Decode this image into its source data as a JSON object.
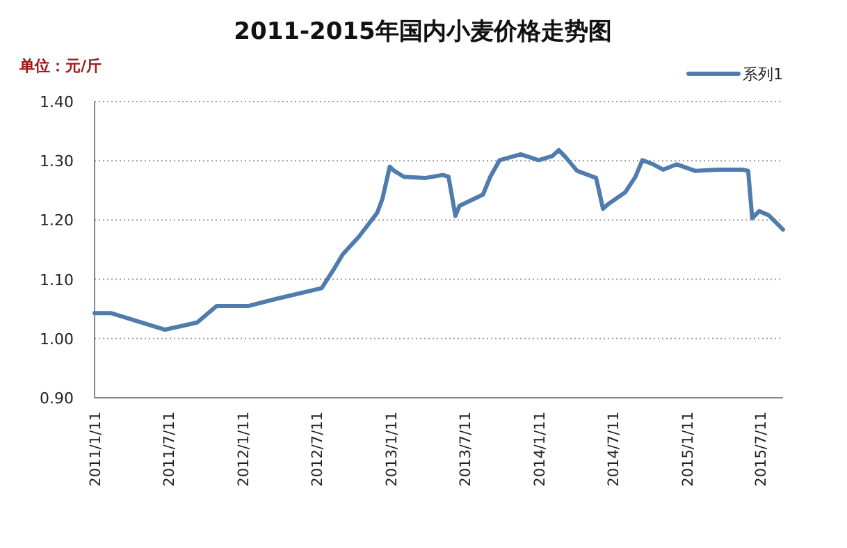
{
  "chart_data": {
    "type": "line",
    "title": "2011-2015年国内小麦价格走势图",
    "ylabel": "单位：元/斤",
    "x": [
      "2011-01-11",
      "2011-02-20",
      "2011-06-10",
      "2011-07-04",
      "2011-09-21",
      "2011-11-08",
      "2012-01-26",
      "2012-04-03",
      "2012-07-24",
      "2012-08-24",
      "2012-09-14",
      "2012-10-24",
      "2012-12-08",
      "2012-12-21",
      "2013-01-08",
      "2013-01-19",
      "2013-02-12",
      "2013-04-06",
      "2013-05-19",
      "2013-06-02",
      "2013-06-19",
      "2013-06-29",
      "2013-08-26",
      "2013-09-13",
      "2013-10-06",
      "2013-11-27",
      "2014-01-10",
      "2014-02-13",
      "2014-03-01",
      "2014-03-18",
      "2014-04-15",
      "2014-06-01",
      "2014-06-18",
      "2014-06-29",
      "2014-08-12",
      "2014-09-06",
      "2014-09-23",
      "2014-10-20",
      "2014-11-13",
      "2014-12-17",
      "2015-01-31",
      "2015-03-28",
      "2015-05-28",
      "2015-06-11",
      "2015-06-21",
      "2015-07-08",
      "2015-08-01",
      "2015-09-05"
    ],
    "series": [
      {
        "name": "系列1",
        "color": "#4f7cac",
        "values": [
          1.043,
          1.043,
          1.02,
          1.015,
          1.027,
          1.055,
          1.055,
          1.067,
          1.085,
          1.118,
          1.142,
          1.172,
          1.212,
          1.236,
          1.29,
          1.283,
          1.273,
          1.271,
          1.276,
          1.273,
          1.207,
          1.224,
          1.243,
          1.273,
          1.301,
          1.311,
          1.301,
          1.308,
          1.318,
          1.306,
          1.283,
          1.271,
          1.219,
          1.226,
          1.247,
          1.273,
          1.301,
          1.294,
          1.285,
          1.294,
          1.283,
          1.285,
          1.285,
          1.283,
          1.203,
          1.215,
          1.208,
          1.184
        ]
      }
    ],
    "xlim": [
      "2011-01-11",
      "2015-09-05"
    ],
    "xticks": [
      {
        "value": "2011-01-11",
        "label": "2011/1/11"
      },
      {
        "value": "2011-07-11",
        "label": "2011/7/11"
      },
      {
        "value": "2012-01-11",
        "label": "2012/1/11"
      },
      {
        "value": "2012-07-11",
        "label": "2012/7/11"
      },
      {
        "value": "2013-01-11",
        "label": "2013/1/11"
      },
      {
        "value": "2013-07-11",
        "label": "2013/7/11"
      },
      {
        "value": "2014-01-11",
        "label": "2014/1/11"
      },
      {
        "value": "2014-07-11",
        "label": "2014/7/11"
      },
      {
        "value": "2015-01-11",
        "label": "2015/1/11"
      },
      {
        "value": "2015-07-11",
        "label": "2015/7/11"
      }
    ],
    "ylim": [
      0.9,
      1.4
    ],
    "yticks": [
      {
        "value": 0.9,
        "label": "0.90"
      },
      {
        "value": 1.0,
        "label": "1.00"
      },
      {
        "value": 1.1,
        "label": "1.10"
      },
      {
        "value": 1.2,
        "label": "1.20"
      },
      {
        "value": 1.3,
        "label": "1.30"
      },
      {
        "value": 1.4,
        "label": "1.40"
      }
    ],
    "grid": "y",
    "legend": "top right",
    "marker": "none",
    "line_style": "solid"
  }
}
